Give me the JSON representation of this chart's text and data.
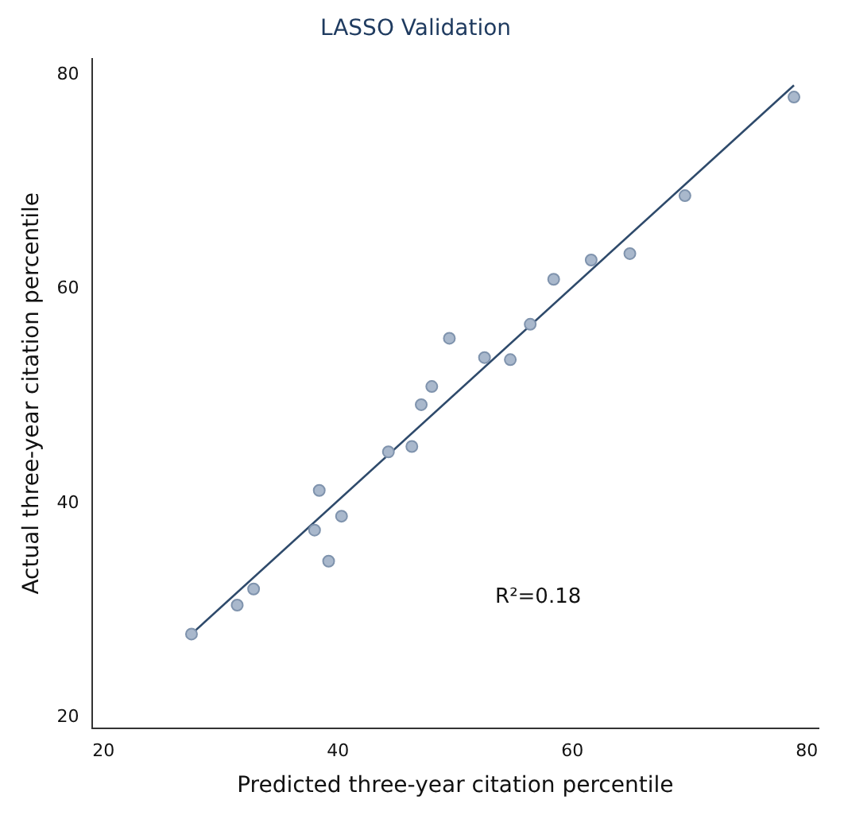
{
  "chart_data": {
    "type": "scatter",
    "title": "LASSO Validation",
    "xlabel": "Predicted three-year citation percentile",
    "ylabel": "Actual three-year citation percentile",
    "xlim": [
      19,
      81
    ],
    "ylim": [
      19,
      81.5
    ],
    "xticks": [
      20,
      40,
      60,
      80
    ],
    "yticks": [
      20,
      40,
      60,
      80
    ],
    "grid": false,
    "legend": false,
    "marker": "circle",
    "series": [
      {
        "type": "scatter",
        "color": "#a9b8cc",
        "x": [
          27.5,
          31.4,
          32.8,
          38.0,
          38.4,
          39.2,
          40.3,
          44.3,
          46.3,
          47.1,
          48.0,
          49.5,
          52.5,
          54.7,
          56.4,
          58.4,
          61.6,
          64.9,
          69.6,
          78.9
        ],
        "values": [
          27.8,
          30.5,
          32.0,
          37.5,
          41.2,
          34.6,
          38.8,
          44.8,
          45.3,
          49.2,
          50.9,
          55.4,
          53.6,
          53.4,
          56.7,
          60.9,
          62.7,
          63.3,
          68.7,
          77.9
        ]
      },
      {
        "type": "line",
        "color": "#2e4a6b",
        "x": [
          27.5,
          78.9
        ],
        "values": [
          27.8,
          79.0
        ],
        "marker": "none"
      }
    ],
    "annotations": [
      "R²=0.18"
    ]
  }
}
